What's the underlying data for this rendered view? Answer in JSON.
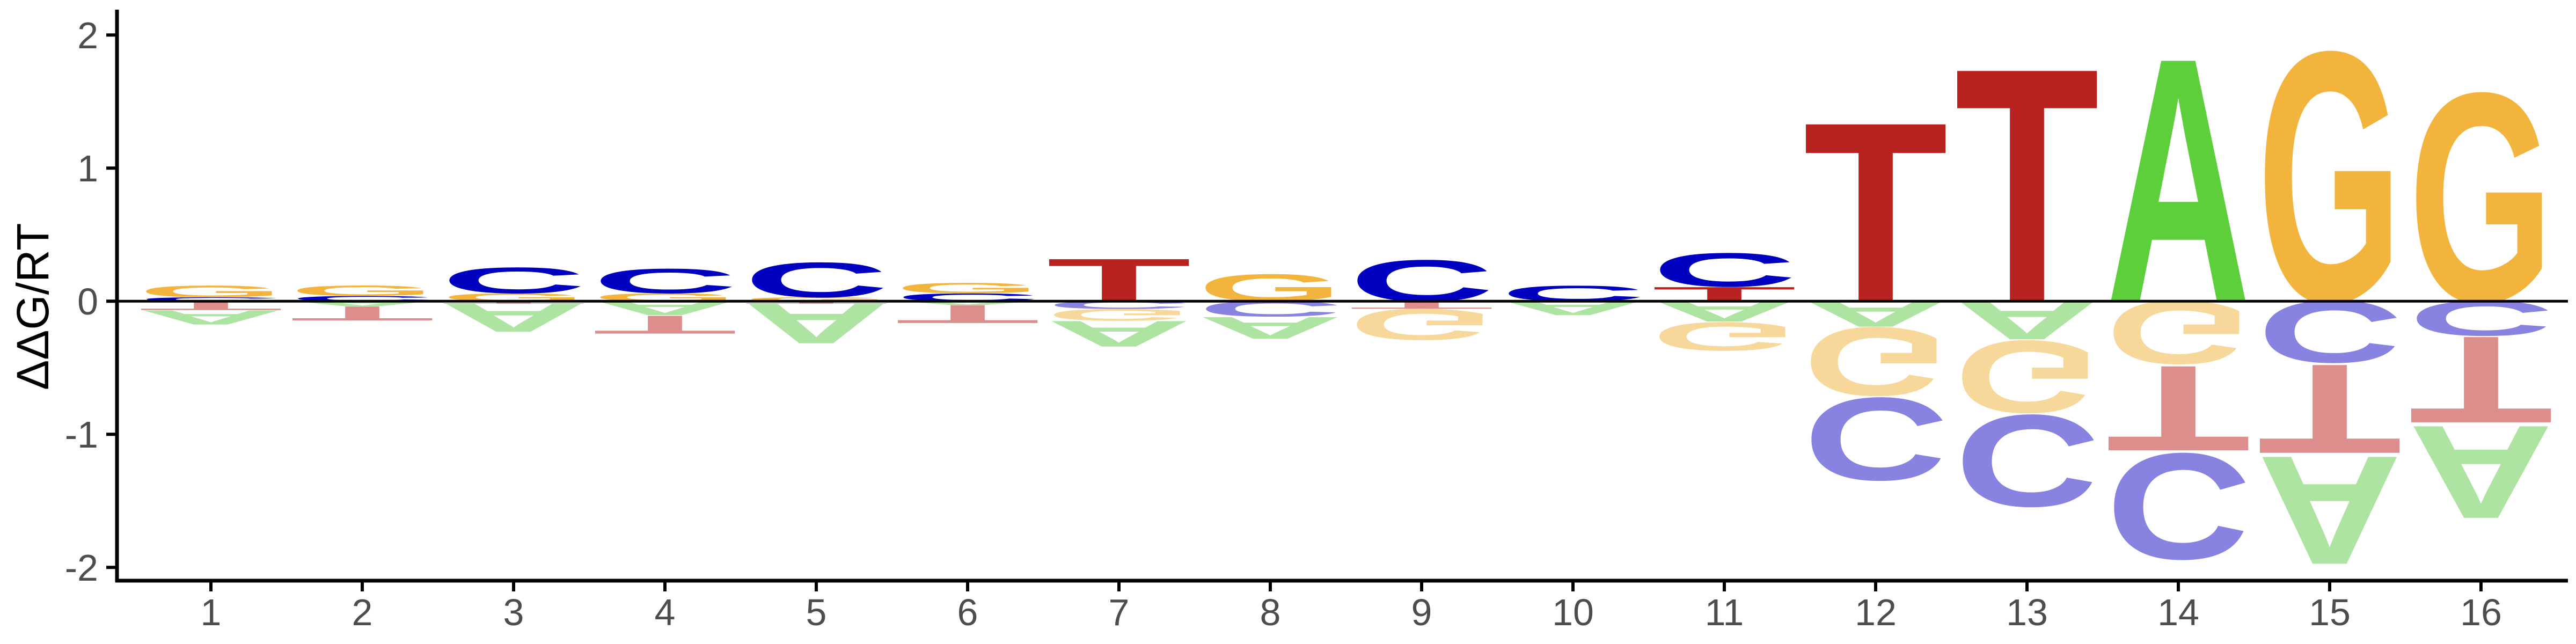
{
  "chart_data": {
    "type": "energy-sequence-logo",
    "ylabel": "ΔΔG/RT",
    "xlabel": "",
    "ylim": [
      -2.1,
      2.15
    ],
    "y_ticks": [
      -2,
      -1,
      0,
      1,
      2
    ],
    "x_ticks": [
      "1",
      "2",
      "3",
      "4",
      "5",
      "6",
      "7",
      "8",
      "9",
      "10",
      "11",
      "12",
      "13",
      "14",
      "15",
      "16"
    ],
    "zero_line": true,
    "grid": false,
    "colors": {
      "A_pos": "#5dcf3a",
      "A_neg": "#aee4a2",
      "C_pos": "#0000c0",
      "C_neg": "#8882e0",
      "G_pos": "#f3b43e",
      "G_neg": "#f7d89a",
      "T_pos": "#b8221f",
      "T_neg": "#dc8e8c"
    },
    "positions": [
      {
        "pos": 1,
        "pos_stack": [
          [
            "C",
            0.03
          ],
          [
            "G",
            0.09
          ]
        ],
        "neg_stack": [
          [
            "T",
            0.07
          ],
          [
            "A",
            0.11
          ]
        ]
      },
      {
        "pos": 2,
        "pos_stack": [
          [
            "C",
            0.04
          ],
          [
            "G",
            0.08
          ]
        ],
        "neg_stack": [
          [
            "A",
            0.04
          ],
          [
            "T",
            0.11
          ]
        ]
      },
      {
        "pos": 3,
        "pos_stack": [
          [
            "G",
            0.06
          ],
          [
            "C",
            0.2
          ]
        ],
        "neg_stack": [
          [
            "T",
            0.02
          ],
          [
            "A",
            0.22
          ]
        ]
      },
      {
        "pos": 4,
        "pos_stack": [
          [
            "G",
            0.06
          ],
          [
            "C",
            0.19
          ]
        ],
        "neg_stack": [
          [
            "A",
            0.11
          ],
          [
            "T",
            0.14
          ]
        ]
      },
      {
        "pos": 5,
        "pos_stack": [
          [
            "G",
            0.03
          ],
          [
            "C",
            0.27
          ]
        ],
        "neg_stack": [
          [
            "T",
            0.02
          ],
          [
            "A",
            0.31
          ]
        ]
      },
      {
        "pos": 6,
        "pos_stack": [
          [
            "C",
            0.06
          ],
          [
            "G",
            0.08
          ]
        ],
        "neg_stack": [
          [
            "A",
            0.03
          ],
          [
            "T",
            0.14
          ]
        ]
      },
      {
        "pos": 7,
        "pos_stack": [
          [
            "T",
            0.33
          ]
        ],
        "neg_stack": [
          [
            "C",
            0.06
          ],
          [
            "G",
            0.09
          ],
          [
            "A",
            0.2
          ]
        ]
      },
      {
        "pos": 8,
        "pos_stack": [
          [
            "G",
            0.21
          ]
        ],
        "neg_stack": [
          [
            "C",
            0.12
          ],
          [
            "A",
            0.17
          ]
        ]
      },
      {
        "pos": 9,
        "pos_stack": [
          [
            "C",
            0.32
          ]
        ],
        "neg_stack": [
          [
            "T",
            0.06
          ],
          [
            "G",
            0.24
          ]
        ]
      },
      {
        "pos": 10,
        "pos_stack": [
          [
            "C",
            0.12
          ]
        ],
        "neg_stack": [
          [
            "A",
            0.11
          ]
        ]
      },
      {
        "pos": 11,
        "pos_stack": [
          [
            "T",
            0.11
          ],
          [
            "C",
            0.26
          ]
        ],
        "neg_stack": [
          [
            "A",
            0.16
          ],
          [
            "G",
            0.22
          ]
        ]
      },
      {
        "pos": 12,
        "pos_stack": [
          [
            "T",
            1.39
          ]
        ],
        "neg_stack": [
          [
            "A",
            0.2
          ],
          [
            "G",
            0.53
          ],
          [
            "C",
            0.64
          ]
        ]
      },
      {
        "pos": 13,
        "pos_stack": [
          [
            "T",
            1.81
          ]
        ],
        "neg_stack": [
          [
            "A",
            0.3
          ],
          [
            "G",
            0.56
          ],
          [
            "C",
            0.71
          ]
        ]
      },
      {
        "pos": 14,
        "pos_stack": [
          [
            "A",
            1.89
          ]
        ],
        "neg_stack": [
          [
            "G",
            0.49
          ],
          [
            "T",
            0.66
          ],
          [
            "C",
            0.82
          ]
        ]
      },
      {
        "pos": 15,
        "pos_stack": [
          [
            "G",
            1.94
          ]
        ],
        "neg_stack": [
          [
            "C",
            0.48
          ],
          [
            "T",
            0.69
          ],
          [
            "A",
            0.84
          ]
        ]
      },
      {
        "pos": 16,
        "pos_stack": [
          [
            "G",
            1.62
          ]
        ],
        "neg_stack": [
          [
            "C",
            0.27
          ],
          [
            "T",
            0.67
          ],
          [
            "A",
            0.72
          ]
        ]
      }
    ]
  }
}
